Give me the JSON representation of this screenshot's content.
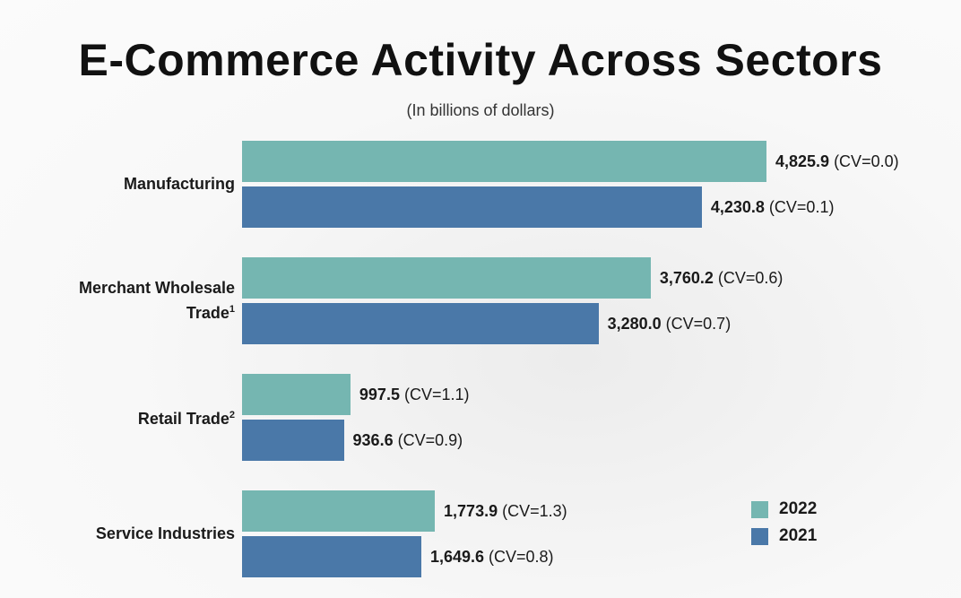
{
  "chart_data": {
    "type": "bar",
    "orientation": "horizontal",
    "title": "E-Commerce Activity Across Sectors",
    "subtitle": "(In billions of dollars)",
    "categories": [
      {
        "label": "Manufacturing",
        "footnote": ""
      },
      {
        "label": "Merchant Wholesale Trade",
        "footnote": "1"
      },
      {
        "label": "Retail Trade",
        "footnote": "2"
      },
      {
        "label": "Service Industries",
        "footnote": ""
      }
    ],
    "series": [
      {
        "name": "2022",
        "color": "#75b6b1",
        "values": [
          4825.9,
          3760.2,
          997.5,
          1773.9
        ],
        "labels": [
          "4,825.9",
          "3,760.2",
          "997.5",
          "1,773.9"
        ],
        "cv": [
          "(CV=0.0)",
          "(CV=0.6)",
          "(CV=1.1)",
          "(CV=1.3)"
        ]
      },
      {
        "name": "2021",
        "color": "#4a78a8",
        "values": [
          4230.8,
          3280.0,
          936.6,
          1649.6
        ],
        "labels": [
          "4,230.8",
          "3,280.0",
          "936.6",
          "1,649.6"
        ],
        "cv": [
          "(CV=0.1)",
          "(CV=0.7)",
          "(CV=0.9)",
          "(CV=0.8)"
        ]
      }
    ],
    "xlim": [
      0,
      4825.9
    ],
    "legend_position": "bottom-right",
    "grid": false
  }
}
